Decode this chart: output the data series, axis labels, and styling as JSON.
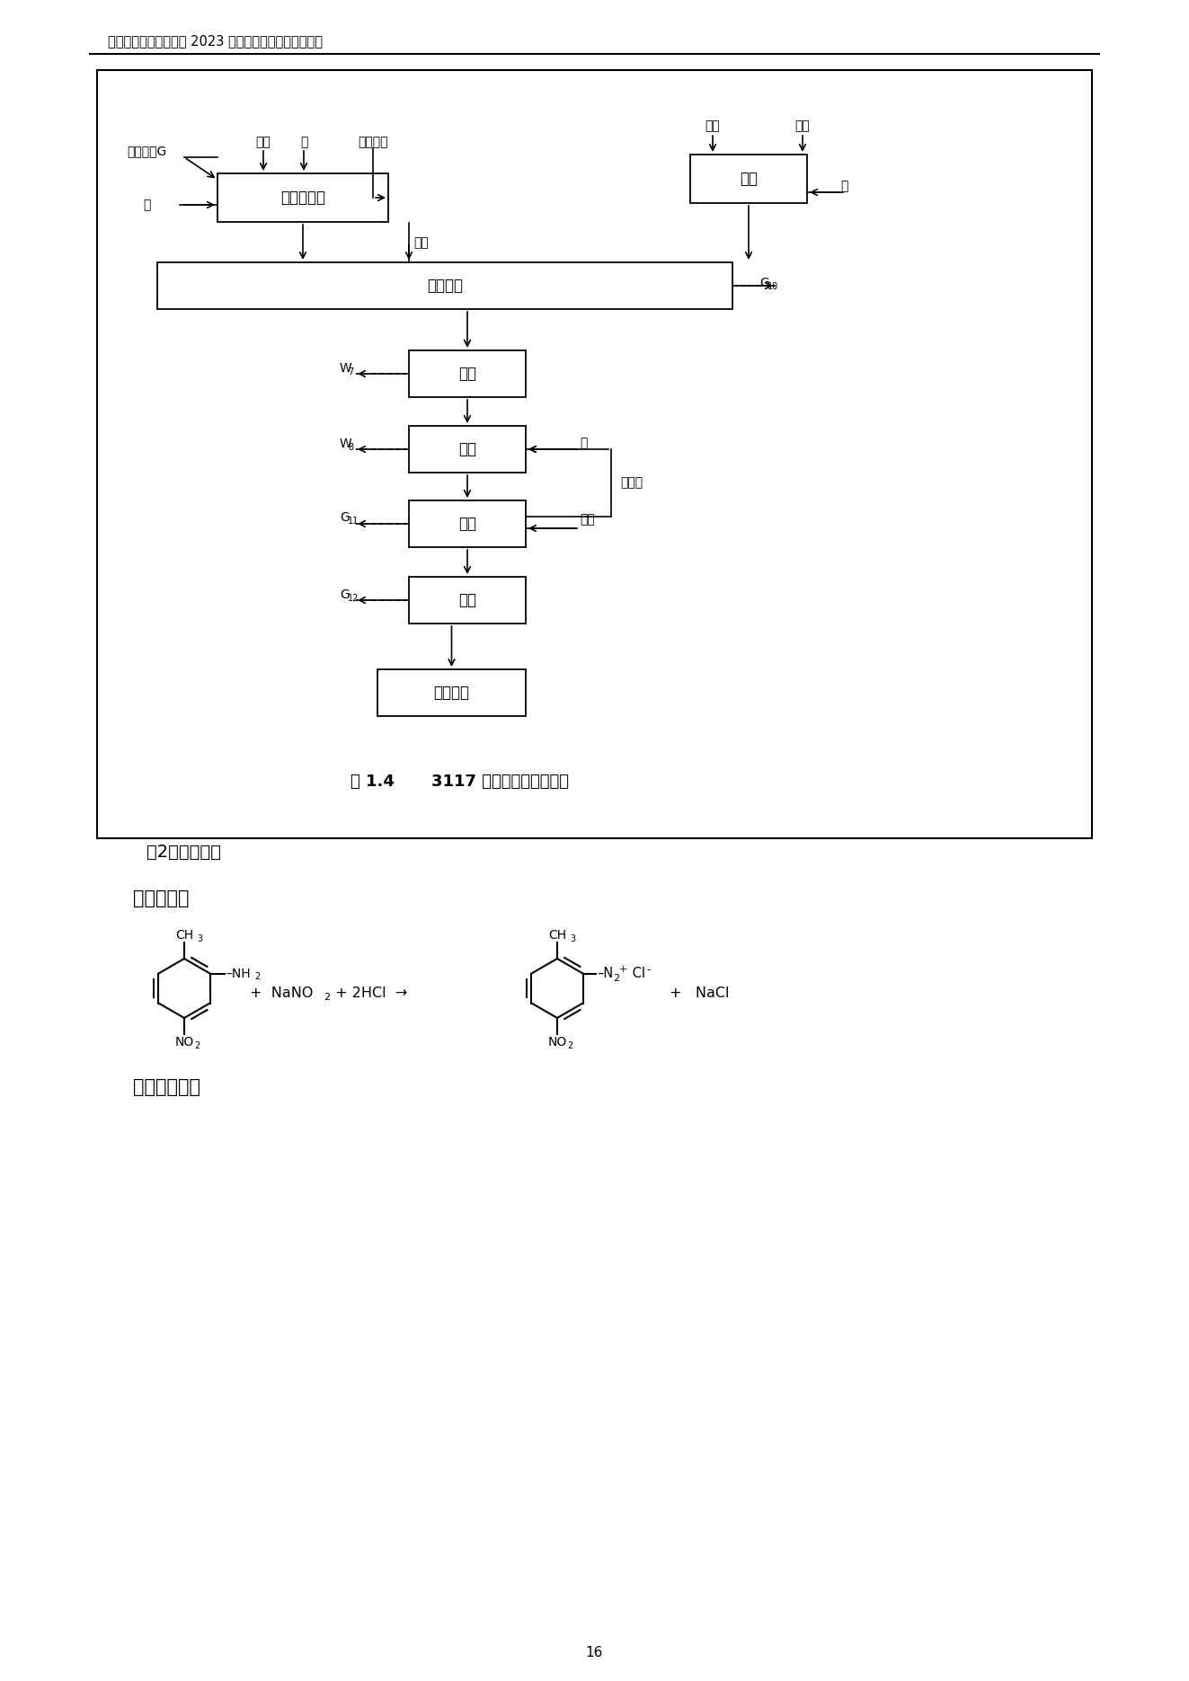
{
  "header_text": "宇虹颤料股份有限公司 2023 年度温室气体排放核查报告",
  "page_number": "16",
  "figure_caption_pre": "图 1.4",
  "figure_caption_post": "3117 亮红生产工艺流程图",
  "section_title": "（2）反应原理",
  "rxn_title1": "重氮化反应",
  "rxn_title2": "偶合组分溶解",
  "label_dahong": "大红色埼G",
  "label_suansan": "盐酸",
  "label_shui1": "水",
  "label_yaxiao": "亚硝酸钓",
  "label_sejiao": "色酚",
  "label_pianjian": "片硨",
  "label_bing": "冰",
  "label_rongji": "溶解",
  "label_ouhe": "偶合反应",
  "label_yalv": "压滤",
  "label_shuixi": "水洗",
  "label_honggan": "烘干",
  "label_fensui": "粉碎",
  "label_pinmix": "拼混成品",
  "label_zhong": "重氮化反应",
  "label_shui2": "水",
  "label_shui3": "水",
  "label_zhengqi1": "蔭汽",
  "label_zhengqi2": "蔭汽",
  "label_huishui": "回收水",
  "bg": "#ffffff",
  "black": "#000000"
}
